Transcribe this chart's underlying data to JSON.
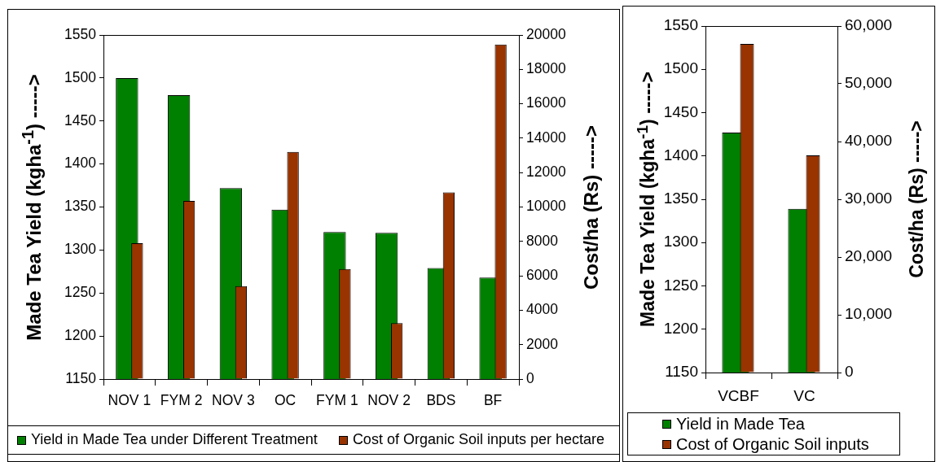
{
  "chart_data": [
    {
      "type": "bar",
      "categories": [
        "NOV 1",
        "FYM 2",
        "NOV 3",
        "OC",
        "FYM 1",
        "NOV 2",
        "BDS",
        "BF"
      ],
      "series": [
        {
          "name": "Yield in Made Tea under Different Treatment",
          "color": "#008000",
          "values": [
            1500,
            1480,
            1372,
            1347,
            1321,
            1320,
            1279,
            1268
          ]
        },
        {
          "name": "Cost of Organic Soil inputs per hectare",
          "color": "#993300",
          "axis": "y2",
          "values": [
            7900,
            10350,
            5400,
            13200,
            6400,
            3250,
            10850,
            19450
          ]
        }
      ],
      "ylabel": "Made Tea Yield (kgha$^{-1}$) ----->",
      "y2label": "Cost/ha (Rs) ----->",
      "ylim": [
        1150,
        1550
      ],
      "yticks": [
        1150,
        1200,
        1250,
        1300,
        1350,
        1400,
        1450,
        1500,
        1550
      ],
      "y2lim": [
        0,
        20000
      ],
      "y2ticks": [
        0,
        2000,
        4000,
        6000,
        8000,
        10000,
        12000,
        14000,
        16000,
        18000,
        20000
      ],
      "grid": false,
      "legend": "bottom"
    },
    {
      "type": "bar",
      "categories": [
        "VCBF",
        "VC"
      ],
      "series": [
        {
          "name": "Yield in Made Tea",
          "color": "#008000",
          "values": [
            1427,
            1339
          ]
        },
        {
          "name": "Cost of Organic Soil inputs",
          "color": "#993300",
          "axis": "y2",
          "values": [
            56900,
            37600
          ]
        }
      ],
      "ylabel": "Made Tea Yield (kgha$^{-1}$) ----->",
      "y2label": "Cost/ha (Rs) ----->",
      "ylim": [
        1150,
        1550
      ],
      "yticks": [
        1150,
        1200,
        1250,
        1300,
        1350,
        1400,
        1450,
        1500,
        1550
      ],
      "y2lim": [
        0,
        60000
      ],
      "y2ticks": [
        0,
        {
          "value": 10000,
          "label": "10,000"
        },
        {
          "value": 20000,
          "label": "20,000"
        },
        {
          "value": 30000,
          "label": "30,000"
        },
        {
          "value": 40000,
          "label": "40,000"
        },
        {
          "value": 50000,
          "label": "50,000"
        },
        {
          "value": 60000,
          "label": "60,000"
        }
      ],
      "grid": false,
      "legend": "bottom"
    }
  ]
}
